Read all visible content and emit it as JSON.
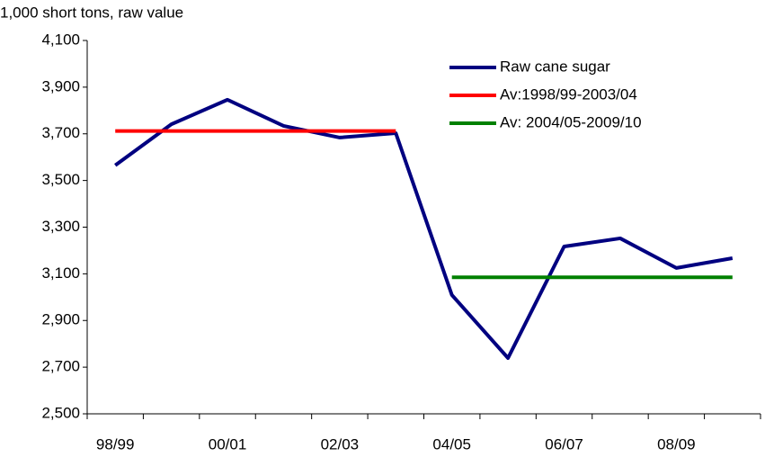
{
  "chart_data": {
    "type": "line",
    "y_axis_label": "1,000 short tons, raw value",
    "categories": [
      "98/99",
      null,
      "00/01",
      null,
      "02/03",
      null,
      "04/05",
      null,
      "06/07",
      null,
      "08/09",
      null
    ],
    "series": [
      {
        "name": "Raw cane sugar",
        "color": "#000080",
        "values": [
          3565,
          3741,
          3846,
          3734,
          3684,
          3703,
          3009,
          2739,
          3217,
          3252,
          3125,
          3167
        ]
      },
      {
        "name": "Av:1998/99-2003/04",
        "color": "#ff0000",
        "values": [
          3712,
          3712,
          3712,
          3712,
          3712,
          3712,
          null,
          null,
          null,
          null,
          null,
          null
        ]
      },
      {
        "name": "Av: 2004/05-2009/10",
        "color": "#008000",
        "values": [
          null,
          null,
          null,
          null,
          null,
          null,
          3085,
          3085,
          3085,
          3085,
          3085,
          3085
        ]
      }
    ],
    "ylim": [
      2500,
      4100
    ],
    "yticks": [
      {
        "value": 2500,
        "label": "2,500"
      },
      {
        "value": 2700,
        "label": "2,700"
      },
      {
        "value": 2900,
        "label": "2,900"
      },
      {
        "value": 3100,
        "label": "3,100"
      },
      {
        "value": 3300,
        "label": "3,300"
      },
      {
        "value": 3500,
        "label": "3,500"
      },
      {
        "value": 3700,
        "label": "3,700"
      },
      {
        "value": 3900,
        "label": "3,900"
      },
      {
        "value": 4100,
        "label": "4,100"
      }
    ],
    "grid": false,
    "legend": "top-right"
  }
}
